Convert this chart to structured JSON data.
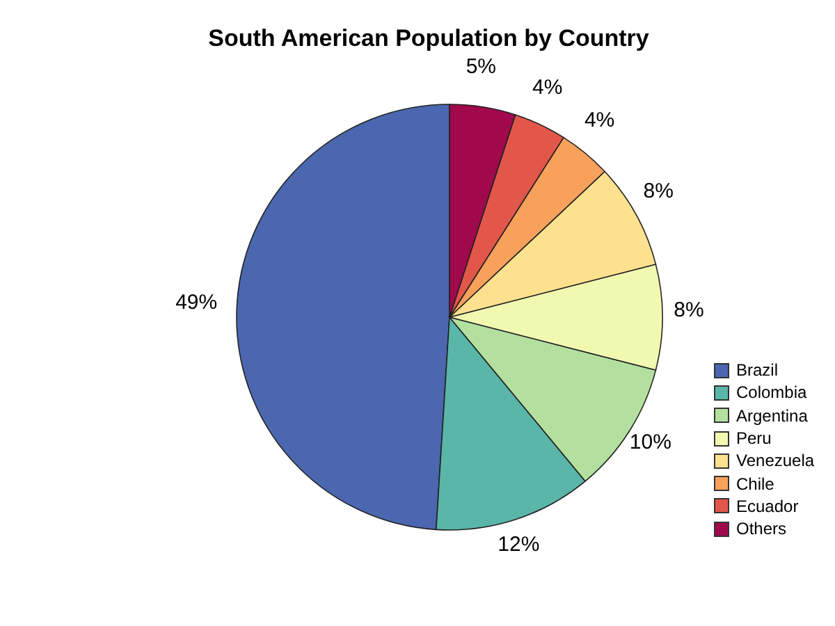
{
  "chart_data": {
    "type": "pie",
    "title": "South American Population by Country",
    "categories": [
      "Brazil",
      "Colombia",
      "Argentina",
      "Peru",
      "Venezuela",
      "Chile",
      "Ecuador",
      "Others"
    ],
    "values": [
      49,
      12,
      10,
      8,
      8,
      4,
      4,
      5
    ],
    "colors": [
      "#4a67af",
      "#5ab6a8",
      "#b3e09f",
      "#f1f9b1",
      "#fde18e",
      "#f8a15b",
      "#e3564a",
      "#a0094b"
    ],
    "value_labels": [
      "49%",
      "12%",
      "10%",
      "8%",
      "8%",
      "4%",
      "4%",
      "5%"
    ],
    "legend": "right"
  }
}
